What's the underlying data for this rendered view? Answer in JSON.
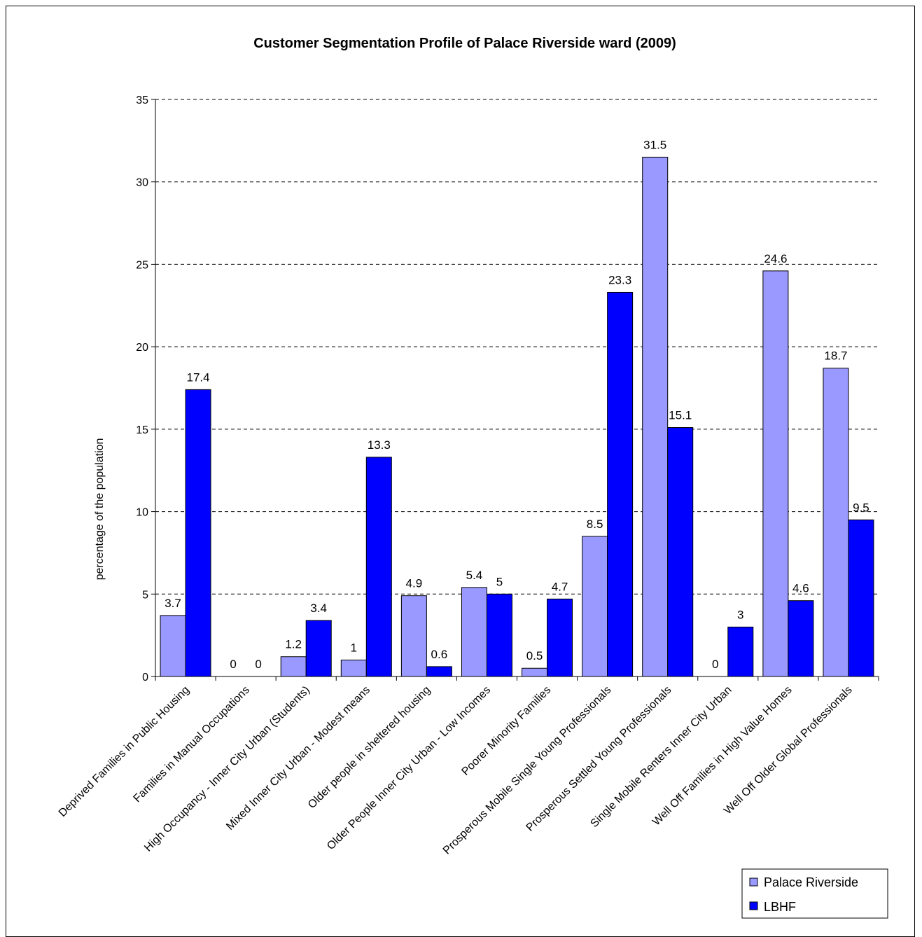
{
  "chart_data": {
    "type": "bar",
    "title": "Customer Segmentation Profile of Palace Riverside ward (2009)",
    "xlabel": "",
    "ylabel": "percentage of the population",
    "ylim": [
      0,
      35
    ],
    "yticks": [
      0,
      5,
      10,
      15,
      20,
      25,
      30,
      35
    ],
    "grid": true,
    "legend_position": "bottom-right",
    "categories": [
      "Deprived Families in Public Housing",
      "Families in Manual Occupations",
      "High Occupancy - Inner City Urban (Students)",
      "Mixed Inner City Urban - Modest means",
      "Older people in sheltered housing",
      "Older People Inner City Urban - Low Incomes",
      "Poorer Minority Families",
      "Prosperous Mobile Single Young Professionals",
      "Prosperous Settled Young Professionals",
      "Single Mobile Renters Inner City Urban",
      "Well Off Families in High Value Homes",
      "Well Off Older Global Professionals"
    ],
    "series": [
      {
        "name": "Palace Riverside",
        "color": "#9999ff",
        "values": [
          3.7,
          0,
          1.2,
          1,
          4.9,
          5.4,
          0.5,
          8.5,
          31.5,
          0,
          24.6,
          18.7
        ]
      },
      {
        "name": "LBHF",
        "color": "#0000ff",
        "values": [
          17.4,
          0,
          3.4,
          13.3,
          0.6,
          5,
          4.7,
          23.3,
          15.1,
          3,
          4.6,
          9.5
        ]
      }
    ]
  }
}
